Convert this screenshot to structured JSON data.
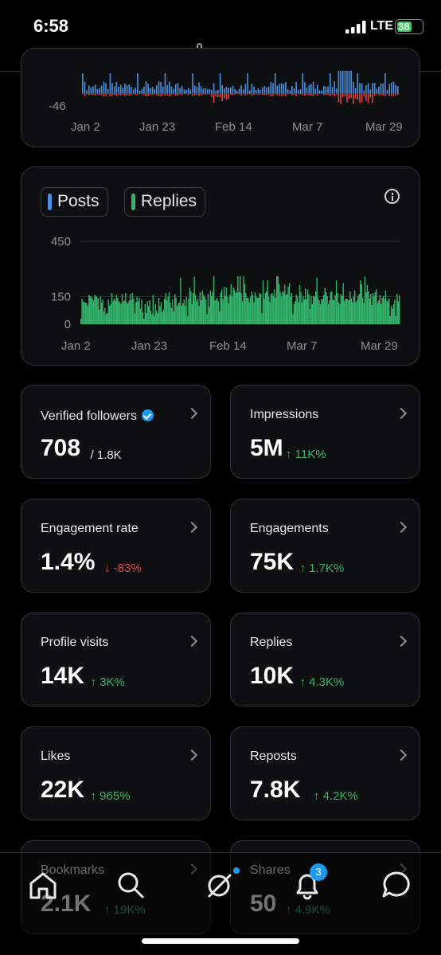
{
  "status": {
    "time": "6:58",
    "network": "LTE",
    "battery": "38"
  },
  "browser": {
    "url": "x.com"
  },
  "colors": {
    "posts": "#4a90e2",
    "replies": "#33b36b",
    "negative": "#e0433f",
    "up": "#35b36b",
    "down": "#e5484d"
  },
  "chart_data": [
    {
      "type": "bar",
      "title": "",
      "xticks": [
        "Jan 2",
        "Jan 23",
        "Feb 14",
        "Mar 7",
        "Mar 29"
      ],
      "yticks": [
        "-46"
      ],
      "series": []
    },
    {
      "type": "bar",
      "title": "",
      "legend": [
        "Posts",
        "Replies"
      ],
      "legend_placement": "top-left",
      "xticks": [
        "Jan 2",
        "Jan 23",
        "Feb 14",
        "Mar 7",
        "Mar 29"
      ],
      "yticks": [
        "450",
        "150",
        "0"
      ],
      "ylim": [
        0,
        450
      ],
      "grid": true,
      "series": [
        {
          "name": "Replies",
          "values": [
            30,
            140,
            125,
            120,
            118,
            115,
            100,
            160,
            155,
            150,
            140,
            130,
            160,
            155,
            150,
            140,
            80,
            150,
            120,
            135,
            70,
            90,
            55,
            60,
            135,
            100,
            110,
            170,
            125,
            140,
            130,
            160,
            145,
            125,
            120,
            110,
            165,
            125,
            130,
            170,
            120,
            110,
            130,
            165,
            130,
            170,
            140,
            60,
            120,
            150,
            125,
            145,
            85,
            135,
            65,
            30,
            110,
            60,
            125,
            100,
            130,
            75,
            55,
            160,
            45,
            110,
            75,
            60,
            145,
            100,
            120,
            65,
            80,
            140,
            170,
            130,
            150,
            175,
            120,
            90,
            135,
            70,
            165,
            145,
            100,
            115,
            120,
            255,
            100,
            115,
            135,
            100,
            150,
            45,
            140,
            200,
            180,
            110,
            170,
            260,
            160,
            125,
            140,
            100,
            175,
            130,
            185,
            160,
            150,
            135,
            55,
            165,
            95,
            185,
            155,
            175,
            265,
            130,
            135,
            145,
            125,
            70,
            170,
            190,
            135,
            205,
            155,
            200,
            150,
            115,
            160,
            220,
            150,
            200,
            190,
            170,
            175,
            270,
            175,
            270,
            170,
            125,
            275,
            220,
            170,
            145,
            145,
            120,
            150,
            180,
            160,
            120,
            175,
            150,
            145,
            145,
            170,
            165,
            60,
            240,
            140,
            170,
            180,
            240,
            150,
            120,
            165,
            170,
            155,
            190,
            145,
            280,
            280,
            220,
            175,
            150,
            180,
            175,
            215,
            160,
            165,
            205,
            225,
            150,
            170,
            55,
            110,
            125,
            160,
            150,
            120,
            215,
            175,
            120,
            155,
            135,
            195,
            135,
            190,
            165,
            85,
            155,
            110,
            155,
            150,
            180,
            255,
            145,
            130,
            110,
            140,
            130,
            160,
            200,
            175,
            155,
            110,
            130,
            175,
            180,
            135,
            130,
            160,
            240,
            170,
            120,
            110,
            165,
            155,
            225,
            125,
            140,
            140,
            135,
            130,
            180,
            140,
            120,
            150,
            185,
            120,
            130,
            155,
            165,
            240,
            220,
            145,
            115,
            260,
            175,
            215,
            180,
            140,
            165,
            105,
            170,
            155,
            175,
            190,
            115,
            130,
            160,
            110,
            145,
            155,
            135,
            185,
            130,
            125,
            140,
            45,
            100,
            85,
            110,
            135,
            45,
            165,
            125,
            160
          ]
        }
      ]
    }
  ],
  "metrics": [
    {
      "label": "Verified followers",
      "value": "708",
      "sub": "/ 1.8K",
      "delta": "",
      "dir": ""
    },
    {
      "label": "Impressions",
      "value": "5M",
      "sub": "",
      "delta": "↑ 11K%",
      "dir": "up"
    },
    {
      "label": "Engagement rate",
      "value": "1.4%",
      "sub": "",
      "delta": "↓ -83%",
      "dir": "down"
    },
    {
      "label": "Engagements",
      "value": "75K",
      "sub": "",
      "delta": "↑ 1.7K%",
      "dir": "up"
    },
    {
      "label": "Profile visits",
      "value": "14K",
      "sub": "",
      "delta": "↑ 3K%",
      "dir": "up"
    },
    {
      "label": "Replies",
      "value": "10K",
      "sub": "",
      "delta": "↑ 4.3K%",
      "dir": "up"
    },
    {
      "label": "Likes",
      "value": "22K",
      "sub": "",
      "delta": "↑ 965%",
      "dir": "up"
    },
    {
      "label": "Reposts",
      "value": "7.8K",
      "sub": "",
      "delta": "↑ 4.2K%",
      "dir": "up"
    },
    {
      "label": "Bookmarks",
      "value": "2.1K",
      "sub": "",
      "delta": "↑ 19K%",
      "dir": "up"
    },
    {
      "label": "Shares",
      "value": "50",
      "sub": "",
      "delta": "↑ 4.9K%",
      "dir": "up"
    }
  ],
  "nav": {
    "items": [
      "home-icon",
      "search-icon",
      "grok-icon",
      "notifications-icon",
      "messages-icon"
    ],
    "notification_count": "3"
  }
}
